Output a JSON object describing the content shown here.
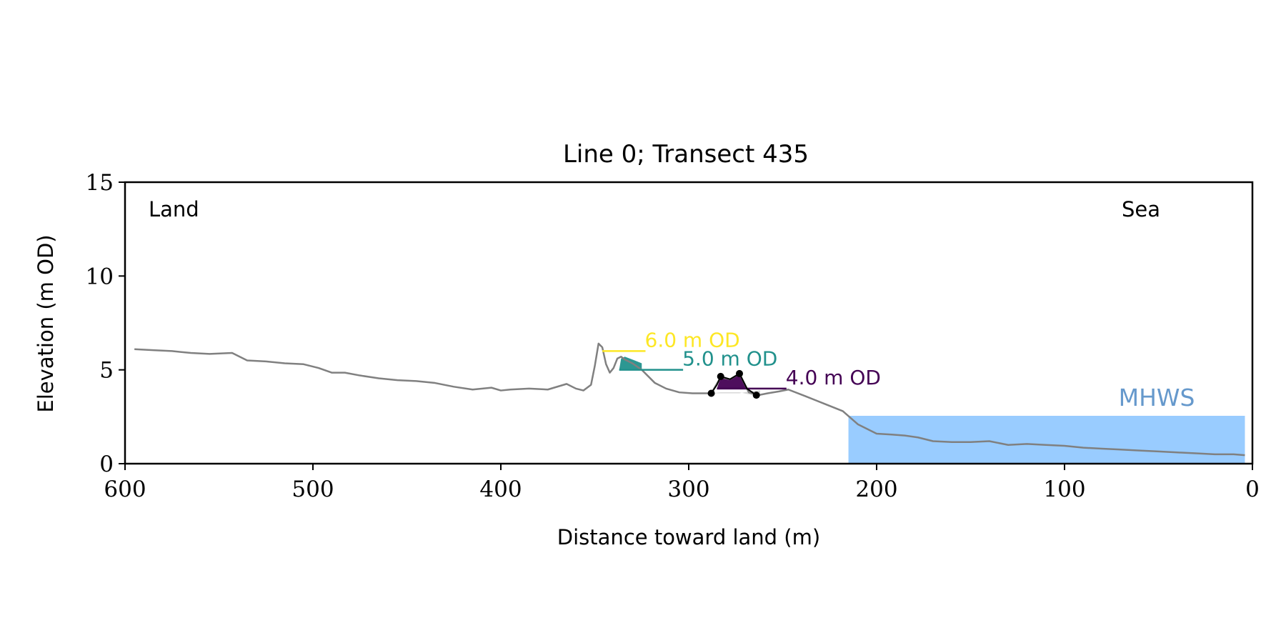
{
  "chart_data": {
    "type": "line",
    "title": "Line 0; Transect 435",
    "xlabel": "Distance toward land (m)",
    "ylabel": "Elevation (m OD)",
    "xlim": [
      600,
      0
    ],
    "x_inverted": true,
    "ylim": [
      0,
      15
    ],
    "xticks": [
      600,
      500,
      400,
      300,
      200,
      100,
      0
    ],
    "yticks": [
      0,
      5,
      10,
      15
    ],
    "grid": false,
    "corner_labels": {
      "left": "Land",
      "right": "Sea"
    },
    "colors": {
      "profile": "#808080",
      "mhws_fill": "#99ccff",
      "mhws_label": "#6699cc",
      "level_6": "#fde725",
      "level_5": "#21918c",
      "level_4": "#440154",
      "dune_outline": "#000000",
      "below_fill": "#d4d4d4"
    },
    "profile": {
      "x": [
        595,
        585,
        575,
        565,
        555,
        543,
        535,
        525,
        515,
        505,
        497,
        490,
        483,
        475,
        465,
        455,
        445,
        435,
        425,
        415,
        405,
        400,
        395,
        385,
        375,
        365,
        360,
        356,
        352,
        350,
        348,
        346,
        344,
        342,
        340,
        338,
        336,
        334,
        330,
        325,
        318,
        312,
        305,
        298,
        292,
        288,
        283,
        278,
        273,
        268,
        263,
        258,
        252,
        247,
        238,
        228,
        218,
        210,
        200,
        192,
        185,
        178,
        170,
        160,
        150,
        140,
        130,
        120,
        110,
        100,
        90,
        80,
        70,
        60,
        50,
        40,
        30,
        20,
        10,
        4
      ],
      "y": [
        6.1,
        6.05,
        6.0,
        5.9,
        5.85,
        5.9,
        5.5,
        5.45,
        5.35,
        5.3,
        5.1,
        4.85,
        4.85,
        4.7,
        4.55,
        4.45,
        4.4,
        4.3,
        4.1,
        3.95,
        4.05,
        3.9,
        3.95,
        4.0,
        3.95,
        4.25,
        4.0,
        3.9,
        4.2,
        5.2,
        6.4,
        6.2,
        5.3,
        4.85,
        5.1,
        5.6,
        5.7,
        5.55,
        5.35,
        5.0,
        4.3,
        4.0,
        3.8,
        3.75,
        3.75,
        3.75,
        4.6,
        4.5,
        4.8,
        3.8,
        3.65,
        3.75,
        3.85,
        3.95,
        3.6,
        3.2,
        2.8,
        2.1,
        1.6,
        1.55,
        1.5,
        1.4,
        1.2,
        1.15,
        1.15,
        1.2,
        1.0,
        1.05,
        1.0,
        0.95,
        0.85,
        0.8,
        0.75,
        0.7,
        0.65,
        0.6,
        0.55,
        0.5,
        0.5,
        0.45
      ]
    },
    "mhws": {
      "label": "MHWS",
      "elevation": 2.55,
      "x_start": 215,
      "x_end": 4
    },
    "levels": [
      {
        "label": "6.0 m OD",
        "elevation": 6.0,
        "x_start": 346,
        "x_end": 323,
        "fill": {
          "x": [
            346,
            344
          ],
          "y": [
            6.0,
            6.2
          ]
        }
      },
      {
        "label": "5.0 m OD",
        "elevation": 5.0,
        "x_start": 337,
        "x_end": 303,
        "fill": {
          "x": [
            337,
            336,
            334,
            330,
            325,
            325
          ],
          "y": [
            5.0,
            5.6,
            5.7,
            5.55,
            5.35,
            5.0
          ]
        }
      },
      {
        "label": "4.0 m OD",
        "elevation": 4.0,
        "x_start": 285,
        "x_end": 248,
        "fill": {
          "x": [
            285,
            283,
            278,
            273,
            269,
            269
          ],
          "y": [
            4.0,
            4.6,
            4.5,
            4.8,
            4.0,
            4.0
          ]
        }
      }
    ],
    "below_fill": {
      "x": [
        288,
        283,
        278,
        273,
        268,
        262,
        262,
        268,
        273,
        278,
        283,
        288
      ],
      "y": [
        3.75,
        3.8,
        3.8,
        3.8,
        3.7,
        3.6,
        3.9,
        3.85,
        3.75,
        3.75,
        3.75,
        3.75
      ]
    },
    "dune_points": {
      "x": [
        288,
        283,
        273,
        264
      ],
      "y": [
        3.75,
        4.65,
        4.8,
        3.65
      ]
    },
    "dune_outline": {
      "x": [
        288,
        285,
        283,
        278,
        273,
        269,
        264
      ],
      "y": [
        3.75,
        4.2,
        4.65,
        4.5,
        4.8,
        4.0,
        3.65
      ]
    }
  }
}
